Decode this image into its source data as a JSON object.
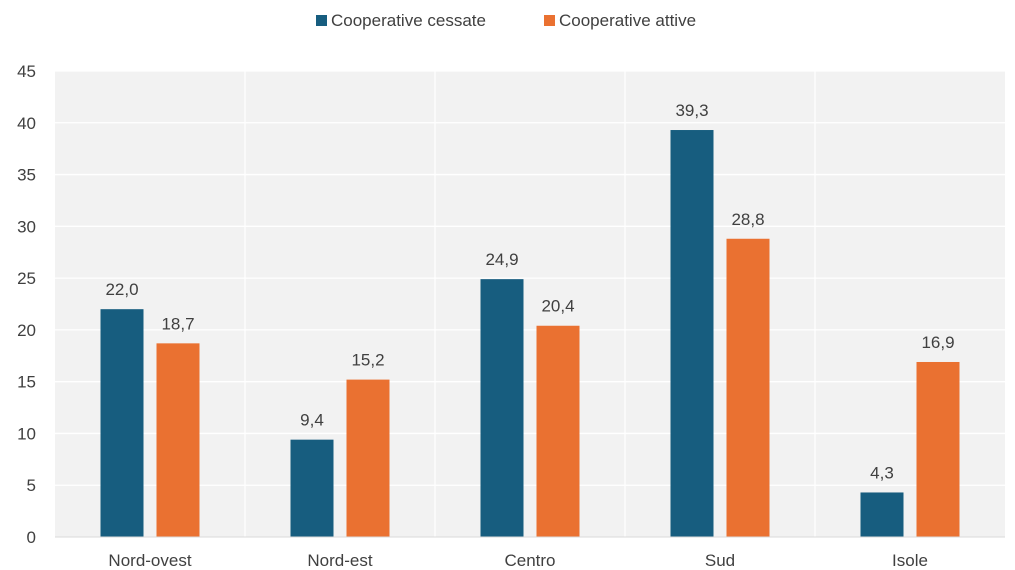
{
  "chart_data": {
    "type": "bar",
    "categories": [
      "Nord-ovest",
      "Nord-est",
      "Centro",
      "Sud",
      "Isole"
    ],
    "series": [
      {
        "name": "Cooperative cessate",
        "values": [
          22.0,
          9.4,
          24.9,
          39.3,
          4.3
        ],
        "labels": [
          "22,0",
          "9,4",
          "24,9",
          "39,3",
          "4,3"
        ],
        "color": "#175d7f"
      },
      {
        "name": "Cooperative attive",
        "values": [
          18.7,
          15.2,
          20.4,
          28.8,
          16.9
        ],
        "labels": [
          "18,7",
          "15,2",
          "20,4",
          "28,8",
          "16,9"
        ],
        "color": "#ea7131"
      }
    ],
    "yticks": [
      "0",
      "5",
      "10",
      "15",
      "20",
      "25",
      "30",
      "35",
      "40",
      "45"
    ],
    "ylim": [
      0,
      45
    ],
    "grid": true,
    "legend": "top-center",
    "plot_background": "#f2f2f2",
    "grid_color": "#ffffff"
  }
}
